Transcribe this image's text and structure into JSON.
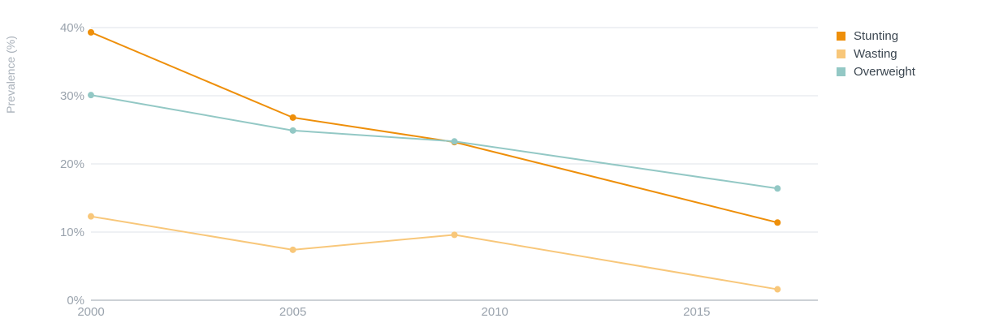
{
  "chart_data": {
    "type": "line",
    "ylabel": "Prevalence (%)",
    "xlabel": "",
    "x_ticks": [
      "2000",
      "2005",
      "2010",
      "2015"
    ],
    "x_tick_values": [
      2000,
      2005,
      2010,
      2015
    ],
    "y_ticks": [
      "0%",
      "10%",
      "20%",
      "30%",
      "40%"
    ],
    "y_tick_values": [
      0,
      10,
      20,
      30,
      40
    ],
    "xlim": [
      2000,
      2018
    ],
    "ylim": [
      0,
      40
    ],
    "grid": true,
    "legend_position": "top-right",
    "series": [
      {
        "name": "Stunting",
        "color": "#ee8f0a",
        "x": [
          2000,
          2005,
          2009,
          2017
        ],
        "values": [
          39.3,
          26.8,
          23.2,
          11.4
        ]
      },
      {
        "name": "Wasting",
        "color": "#f8c77a",
        "x": [
          2000,
          2005,
          2009,
          2017
        ],
        "values": [
          12.3,
          7.4,
          9.6,
          1.6
        ]
      },
      {
        "name": "Overweight",
        "color": "#93c8c5",
        "x": [
          2000,
          2005,
          2009,
          2017
        ],
        "values": [
          30.1,
          24.9,
          23.3,
          16.4
        ]
      }
    ]
  }
}
